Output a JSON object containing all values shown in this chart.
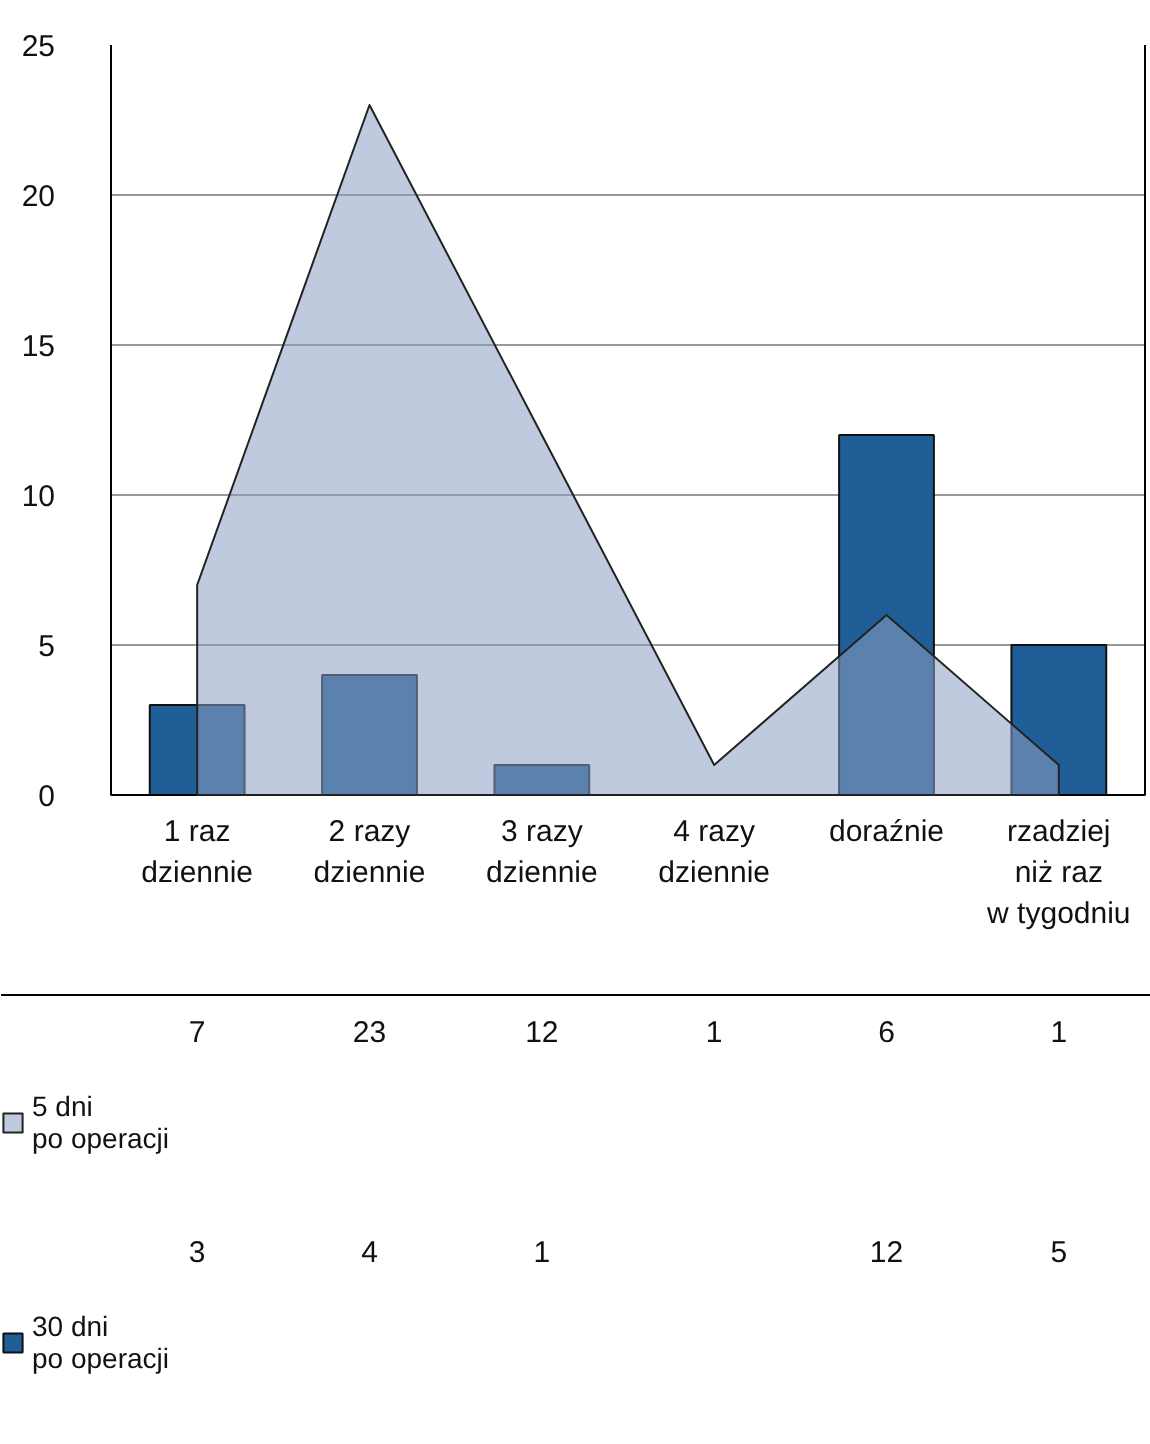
{
  "chart_data": {
    "type": "bar",
    "categories": [
      "1 raz\ndziennie",
      "2 razy\ndziennie",
      "3 razy\ndziennie",
      "4 razy\ndziennie",
      "doraźnie",
      "rzadziej\nniż raz\nw tygodniu"
    ],
    "series": [
      {
        "name": "5 dni\npo operacji",
        "type": "area",
        "color": "#8d9fc4",
        "values": [
          7,
          23,
          12,
          1,
          6,
          1
        ]
      },
      {
        "name": "30 dni\npo operacji",
        "type": "bar",
        "color": "#1f5e96",
        "values": [
          3,
          4,
          1,
          null,
          12,
          5
        ]
      }
    ],
    "ylim": [
      0,
      25
    ],
    "yticks": [
      0,
      5,
      10,
      15,
      20,
      25
    ],
    "grid": "y",
    "legend": "bottom",
    "data_labels": true
  }
}
